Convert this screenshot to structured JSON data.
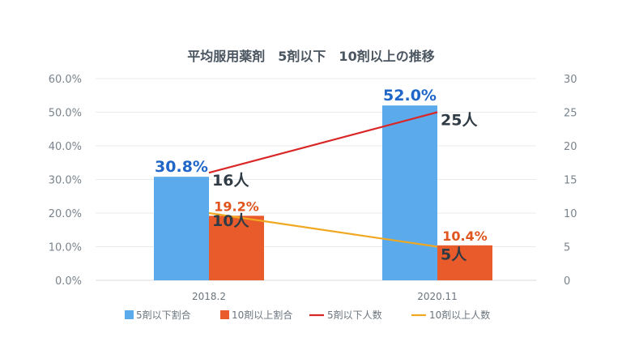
{
  "chart_data": {
    "type": "bar",
    "title": "平均服用薬剤　5剤以下　10剤以上の推移",
    "categories": [
      "2018.2",
      "2020.11"
    ],
    "y_left": {
      "ticks": [
        "0.0%",
        "10.0%",
        "20.0%",
        "30.0%",
        "40.0%",
        "50.0%",
        "60.0%"
      ],
      "range": [
        0,
        60
      ],
      "unit": "%"
    },
    "y_right": {
      "ticks": [
        "0",
        "5",
        "10",
        "15",
        "20",
        "25",
        "30"
      ],
      "range": [
        0,
        30
      ]
    },
    "grid": true,
    "legend_position": "bottom",
    "series": [
      {
        "name": "5剤以下割合",
        "kind": "bar",
        "axis": "left",
        "color": "#5baaeb",
        "label_color": "#1f66c8",
        "values": [
          30.8,
          52.0
        ],
        "labels": [
          "30.8%",
          "52.0%"
        ]
      },
      {
        "name": "10剤以上割合",
        "kind": "bar",
        "axis": "left",
        "color": "#ea5b2c",
        "label_color": "#e0541e",
        "values": [
          19.2,
          10.4
        ],
        "labels": [
          "19.2%",
          "10.4%"
        ]
      },
      {
        "name": "5剤以下人数",
        "kind": "line",
        "axis": "right",
        "color": "#d92626",
        "values": [
          16,
          25
        ],
        "labels": [
          "16人",
          "25人"
        ]
      },
      {
        "name": "10剤以上人数",
        "kind": "line",
        "axis": "right",
        "color": "#f0a820",
        "values": [
          10,
          5
        ],
        "labels": [
          "10人",
          "5人"
        ]
      }
    ]
  }
}
